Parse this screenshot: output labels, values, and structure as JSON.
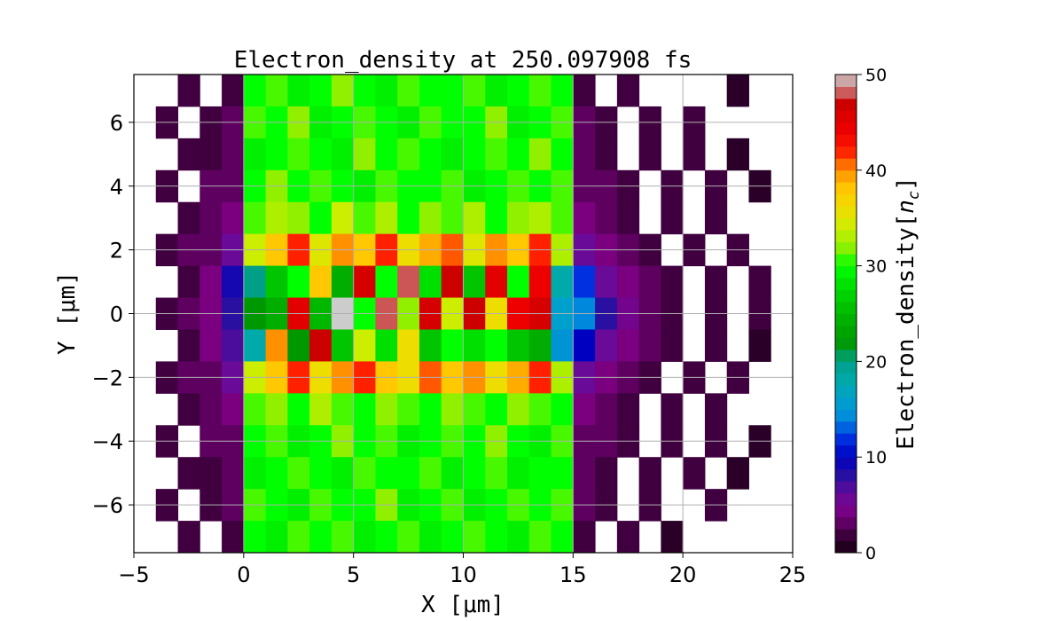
{
  "chart_data": {
    "type": "heatmap",
    "title": "Electron_density at 250.097908 fs",
    "xlabel": "X [μm]",
    "ylabel": "Y [μm]",
    "xlim": [
      -5,
      25
    ],
    "ylim": [
      -7.5,
      7.5
    ],
    "xticks": [
      "−5",
      "0",
      "5",
      "10",
      "15",
      "20",
      "25"
    ],
    "xtick_values": [
      -5,
      0,
      5,
      10,
      15,
      20,
      25
    ],
    "yticks": [
      "6",
      "4",
      "2",
      "0",
      "−2",
      "−4",
      "−6"
    ],
    "ytick_values": [
      6,
      4,
      2,
      0,
      -2,
      -4,
      -6
    ],
    "grid": true,
    "colorbar": {
      "label": "Electron_density[n_c]",
      "label_main": "Electron_density[",
      "label_sub": "n",
      "label_subscript": "c",
      "label_close": "]",
      "range": [
        0,
        50
      ],
      "levels": 40,
      "ticks": [
        "0",
        "10",
        "20",
        "30",
        "40",
        "50"
      ],
      "tick_values": [
        0,
        10,
        20,
        30,
        40,
        50
      ]
    },
    "colormap": [
      [
        0,
        "#150010"
      ],
      [
        2,
        "#400040"
      ],
      [
        4,
        "#7a0080"
      ],
      [
        6,
        "#6a0a98"
      ],
      [
        8,
        "#2a10a0"
      ],
      [
        10,
        "#0000c0"
      ],
      [
        12,
        "#0030e0"
      ],
      [
        14,
        "#0088dd"
      ],
      [
        16,
        "#00a0cc"
      ],
      [
        18,
        "#00aaaa"
      ],
      [
        20,
        "#00a088"
      ],
      [
        22,
        "#009800"
      ],
      [
        25,
        "#00b800"
      ],
      [
        28,
        "#00e000"
      ],
      [
        30,
        "#00ff00"
      ],
      [
        32,
        "#90f000"
      ],
      [
        34,
        "#ccee00"
      ],
      [
        36,
        "#eedd00"
      ],
      [
        38,
        "#ffc800"
      ],
      [
        40,
        "#ff9000"
      ],
      [
        42,
        "#ff2000"
      ],
      [
        44,
        "#ee0000"
      ],
      [
        47,
        "#cc0000"
      ],
      [
        48,
        "#cc5555"
      ],
      [
        50,
        "#cccccc"
      ]
    ],
    "grid_x_centers": [
      -4.5,
      -3.5,
      -2.5,
      -1.5,
      -0.5,
      0.5,
      1.5,
      2.5,
      3.5,
      4.5,
      5.5,
      6.5,
      7.5,
      8.5,
      9.5,
      10.5,
      11.5,
      12.5,
      13.5,
      14.5,
      15.5,
      16.5,
      17.5,
      18.5,
      19.5,
      20.5,
      21.5,
      22.5,
      23.5,
      24.5
    ],
    "grid_y_centers": [
      7,
      6,
      5,
      4,
      3,
      2,
      1,
      0,
      -1,
      -2,
      -3,
      -4,
      -5,
      -6,
      -7
    ],
    "values": [
      [
        null,
        null,
        2,
        null,
        2,
        30,
        31,
        29,
        30,
        32,
        30,
        29,
        31,
        30,
        30,
        31,
        29,
        30,
        31,
        30,
        2,
        null,
        2,
        null,
        null,
        null,
        null,
        1,
        null,
        null
      ],
      [
        null,
        2,
        null,
        2,
        3,
        31,
        30,
        32,
        29,
        30,
        31,
        30,
        29,
        31,
        30,
        30,
        32,
        29,
        30,
        31,
        3,
        2,
        null,
        2,
        null,
        2,
        null,
        null,
        null,
        null
      ],
      [
        null,
        null,
        2,
        2,
        3,
        29,
        30,
        31,
        30,
        29,
        32,
        30,
        31,
        30,
        29,
        30,
        31,
        30,
        32,
        30,
        3,
        2,
        null,
        2,
        null,
        2,
        null,
        1,
        null,
        null
      ],
      [
        null,
        2,
        null,
        3,
        3,
        30,
        32,
        30,
        31,
        30,
        29,
        31,
        30,
        30,
        31,
        29,
        30,
        31,
        30,
        31,
        3,
        3,
        2,
        null,
        2,
        null,
        2,
        null,
        1,
        null
      ],
      [
        null,
        null,
        2,
        3,
        4,
        31,
        33,
        32,
        30,
        34,
        31,
        33,
        30,
        32,
        31,
        33,
        30,
        32,
        33,
        31,
        4,
        3,
        2,
        null,
        2,
        null,
        2,
        null,
        null,
        null
      ],
      [
        null,
        2,
        3,
        3,
        6,
        34,
        38,
        42,
        35,
        40,
        38,
        42,
        36,
        39,
        41,
        35,
        40,
        38,
        42,
        33,
        6,
        4,
        3,
        2,
        null,
        2,
        null,
        2,
        null,
        null
      ],
      [
        null,
        null,
        2,
        4,
        9,
        20,
        26,
        30,
        38,
        24,
        46,
        30,
        48,
        28,
        47,
        26,
        45,
        30,
        44,
        18,
        12,
        6,
        4,
        3,
        2,
        null,
        2,
        null,
        2,
        null
      ],
      [
        null,
        2,
        3,
        4,
        8,
        22,
        24,
        45,
        25,
        50,
        30,
        48,
        32,
        46,
        34,
        47,
        36,
        44,
        46,
        16,
        14,
        8,
        5,
        3,
        2,
        null,
        2,
        null,
        2,
        null
      ],
      [
        null,
        null,
        2,
        4,
        7,
        18,
        40,
        22,
        47,
        26,
        34,
        28,
        36,
        26,
        30,
        28,
        30,
        26,
        24,
        15,
        10,
        6,
        4,
        3,
        2,
        null,
        2,
        null,
        1,
        null
      ],
      [
        null,
        2,
        3,
        3,
        6,
        34,
        38,
        42,
        36,
        40,
        42,
        38,
        36,
        41,
        38,
        40,
        36,
        39,
        42,
        33,
        6,
        4,
        3,
        2,
        null,
        2,
        null,
        2,
        null,
        null
      ],
      [
        null,
        null,
        2,
        3,
        4,
        31,
        32,
        30,
        33,
        31,
        30,
        32,
        31,
        30,
        32,
        31,
        30,
        32,
        31,
        30,
        4,
        3,
        2,
        null,
        2,
        null,
        2,
        null,
        null,
        null
      ],
      [
        null,
        2,
        null,
        3,
        3,
        30,
        31,
        29,
        30,
        32,
        30,
        31,
        29,
        30,
        31,
        30,
        32,
        30,
        29,
        31,
        3,
        3,
        2,
        null,
        2,
        null,
        2,
        null,
        1,
        null
      ],
      [
        null,
        null,
        2,
        2,
        3,
        29,
        30,
        31,
        30,
        29,
        31,
        30,
        30,
        31,
        29,
        30,
        31,
        29,
        30,
        30,
        3,
        2,
        null,
        2,
        null,
        2,
        null,
        1,
        null,
        null
      ],
      [
        null,
        2,
        null,
        2,
        3,
        31,
        30,
        29,
        31,
        30,
        30,
        32,
        29,
        30,
        31,
        29,
        30,
        31,
        30,
        31,
        3,
        2,
        null,
        2,
        null,
        null,
        2,
        null,
        null,
        null
      ],
      [
        null,
        null,
        2,
        null,
        2,
        30,
        29,
        31,
        30,
        31,
        29,
        30,
        31,
        29,
        30,
        31,
        30,
        29,
        31,
        30,
        2,
        null,
        2,
        null,
        1,
        null,
        null,
        null,
        null,
        null
      ]
    ]
  }
}
